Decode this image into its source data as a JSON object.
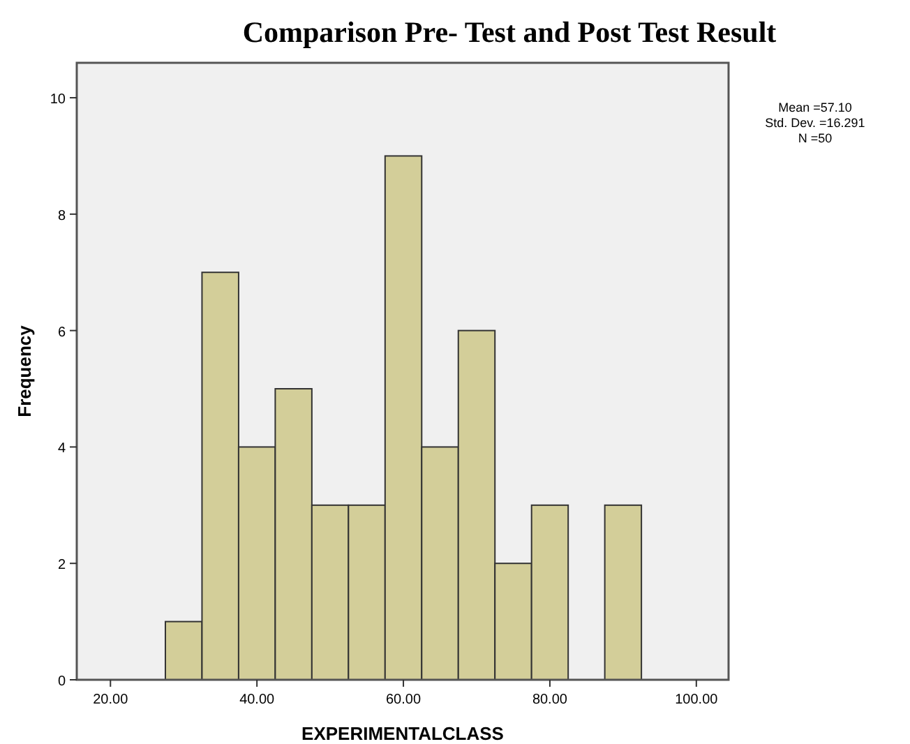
{
  "chart_data": {
    "type": "histogram",
    "title": "Comparison Pre- Test and Post Test Result",
    "xlabel": "EXPERIMENTALCLASS",
    "ylabel": "Frequency",
    "bins": [
      27.5,
      32.5,
      37.5,
      42.5,
      47.5,
      52.5,
      57.5,
      62.5,
      67.5,
      72.5,
      77.5,
      82.5,
      87.5,
      92.5
    ],
    "values": [
      1,
      7,
      4,
      5,
      3,
      3,
      9,
      4,
      6,
      2,
      3,
      0,
      3
    ],
    "color": "#d3ce99",
    "xlim": [
      15.4,
      104.4
    ],
    "xticks": [
      {
        "value": 20,
        "label": "20.00"
      },
      {
        "value": 40,
        "label": "40.00"
      },
      {
        "value": 60,
        "label": "60.00"
      },
      {
        "value": 80,
        "label": "80.00"
      },
      {
        "value": 100,
        "label": "100.00"
      }
    ],
    "ylim": [
      0,
      10.6
    ],
    "yticks": [
      0,
      2,
      4,
      6,
      8,
      10
    ],
    "grid": false,
    "annotations": [
      "Mean =57.10",
      "Std. Dev. =16.291",
      "N =50"
    ]
  }
}
